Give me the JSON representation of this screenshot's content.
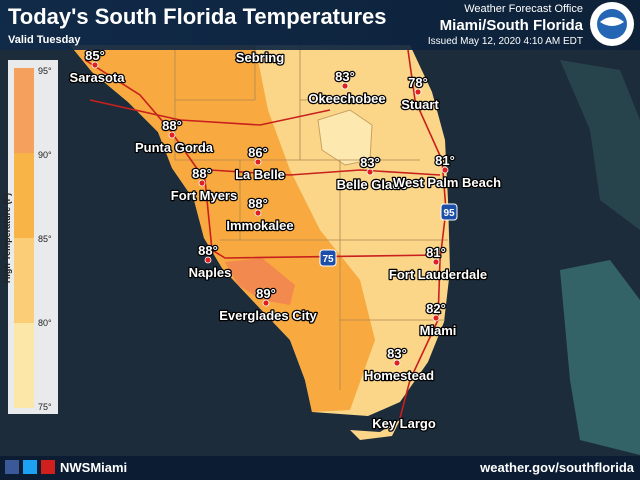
{
  "header": {
    "title": "Today's South Florida Temperatures",
    "subtitle": "Valid Tuesday",
    "office": "Weather Forecast Office",
    "region": "Miami/South Florida",
    "issued": "Issued May 12, 2020 4:10 AM EDT"
  },
  "legend": {
    "title": "High Temperature (F)",
    "ticks": [
      "95°",
      "90°",
      "85°",
      "80°",
      "75°"
    ]
  },
  "cities": [
    {
      "name": "Sarasota",
      "temp": "85°"
    },
    {
      "name": "Sebring"
    },
    {
      "name": "Okeechobee",
      "temp": "83°"
    },
    {
      "name": "Stuart",
      "temp": "78°"
    },
    {
      "name": "Punta Gorda",
      "temp": "88°"
    },
    {
      "name": "Fort Myers",
      "temp": "88°"
    },
    {
      "name": "La Belle",
      "temp": "86°"
    },
    {
      "name": "Belle Glade",
      "temp": "83°"
    },
    {
      "name": "West Palm Beach",
      "temp": "81°"
    },
    {
      "name": "Immokalee",
      "temp": "88°"
    },
    {
      "name": "Naples",
      "temp": "88°"
    },
    {
      "name": "Everglades City",
      "temp": "89°"
    },
    {
      "name": "Fort Lauderdale",
      "temp": "81°"
    },
    {
      "name": "Miami",
      "temp": "82°"
    },
    {
      "name": "Homestead",
      "temp": "83°"
    },
    {
      "name": "Key Largo"
    }
  ],
  "highways": [
    "75",
    "95"
  ],
  "footer": {
    "social": "NWSMiami",
    "website": "weather.gov/southflorida"
  }
}
